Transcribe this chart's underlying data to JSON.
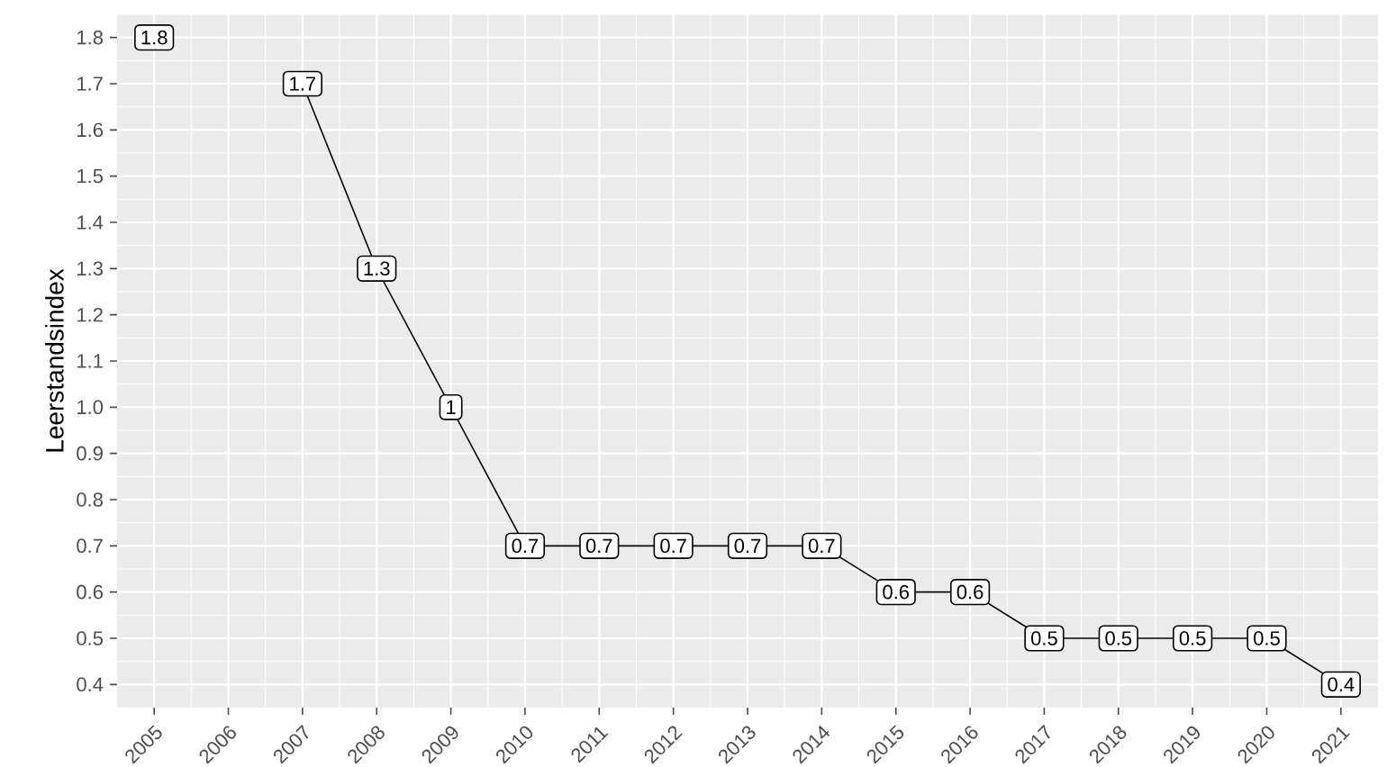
{
  "chart_data": {
    "type": "line",
    "ylabel": "Leerstandsindex",
    "categories": [
      "2005",
      "2006",
      "2007",
      "2008",
      "2009",
      "2010",
      "2011",
      "2012",
      "2013",
      "2014",
      "2015",
      "2016",
      "2017",
      "2018",
      "2019",
      "2020",
      "2021"
    ],
    "series": [
      {
        "color": "#000000",
        "values": [
          1.8,
          null,
          1.7,
          1.3,
          1.0,
          0.7,
          0.7,
          0.7,
          0.7,
          0.7,
          0.6,
          0.6,
          0.5,
          0.5,
          0.5,
          0.5,
          0.4
        ],
        "value_labels": [
          "1.8",
          null,
          "1.7",
          "1.3",
          "1",
          "0.7",
          "0.7",
          "0.7",
          "0.7",
          "0.7",
          "0.6",
          "0.6",
          "0.5",
          "0.5",
          "0.5",
          "0.5",
          "0.4"
        ]
      }
    ],
    "ylim": [
      0.35,
      1.85
    ],
    "yticks": [
      0.4,
      0.5,
      0.6,
      0.7,
      0.8,
      0.9,
      "1.0",
      1.1,
      1.2,
      1.3,
      1.4,
      1.5,
      1.6,
      1.7,
      1.8
    ],
    "grid": true,
    "marker": "square",
    "line_style": "solid"
  }
}
